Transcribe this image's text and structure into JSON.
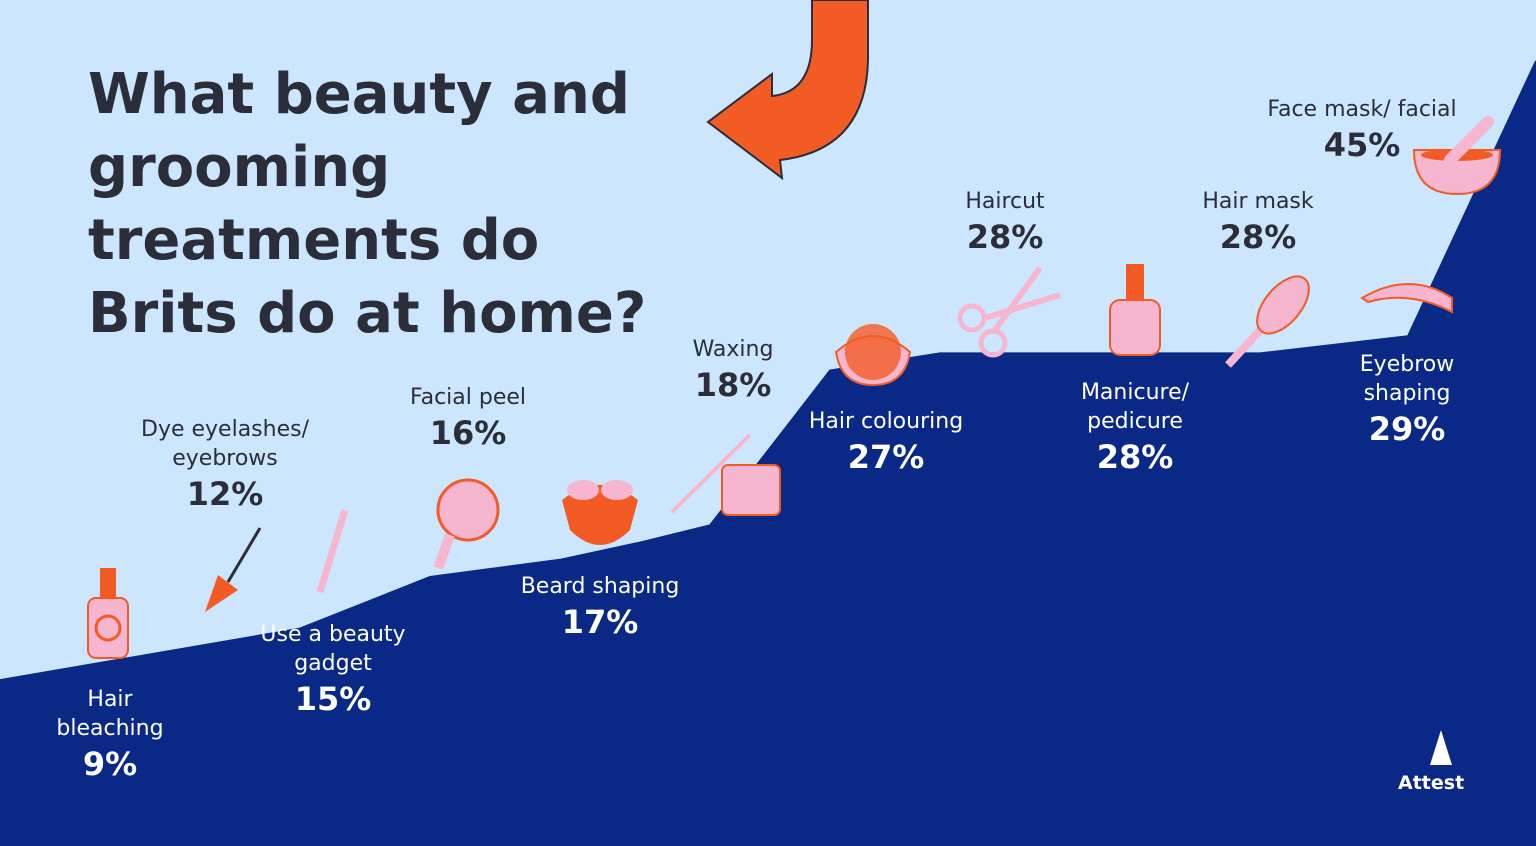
{
  "chart_data": {
    "type": "area",
    "title": "What beauty and grooming treatments do Brits do at home?",
    "categories": [
      "Hair bleaching",
      "Dye eyelashes/ eyebrows",
      "Use a beauty gadget",
      "Facial peel",
      "Beard shaping",
      "Waxing",
      "Hair colouring",
      "Haircut",
      "Manicure/ pedicure",
      "Hair mask",
      "Eyebrow shaping",
      "Face mask/ facial"
    ],
    "values": [
      9,
      12,
      15,
      16,
      17,
      18,
      27,
      28,
      28,
      28,
      29,
      45
    ],
    "value_labels": [
      "9%",
      "12%",
      "15%",
      "16%",
      "17%",
      "18%",
      "27%",
      "28%",
      "28%",
      "28%",
      "29%",
      "45%"
    ],
    "color": "#0a2885",
    "brand": "Attest"
  }
}
